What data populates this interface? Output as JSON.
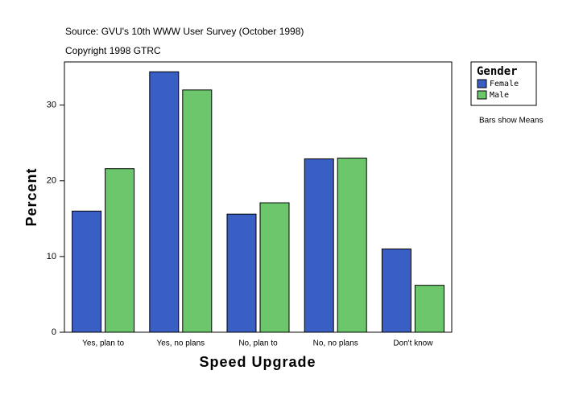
{
  "chart_data": {
    "type": "bar",
    "title": "Source: GVU's 10th WWW User Survey (October 1998)",
    "subtitle": "Copyright 1998 GTRC",
    "annotation": "Bars show Means",
    "x_label": "Speed Upgrade",
    "y_label": "Percent",
    "legend_title": "Gender",
    "categories": [
      "Yes, plan to",
      "Yes, no plans",
      "No, plan to",
      "No, no plans",
      "Don't know"
    ],
    "series": [
      {
        "name": "Female",
        "color": "#3a5fc4",
        "values": [
          16.0,
          34.4,
          15.6,
          22.9,
          11.0
        ]
      },
      {
        "name": "Male",
        "color": "#6cc76c",
        "values": [
          21.6,
          32.0,
          17.1,
          23.0,
          6.2
        ]
      }
    ],
    "ylim": [
      0,
      35.7
    ],
    "yticks": [
      0,
      10,
      20,
      30
    ]
  }
}
